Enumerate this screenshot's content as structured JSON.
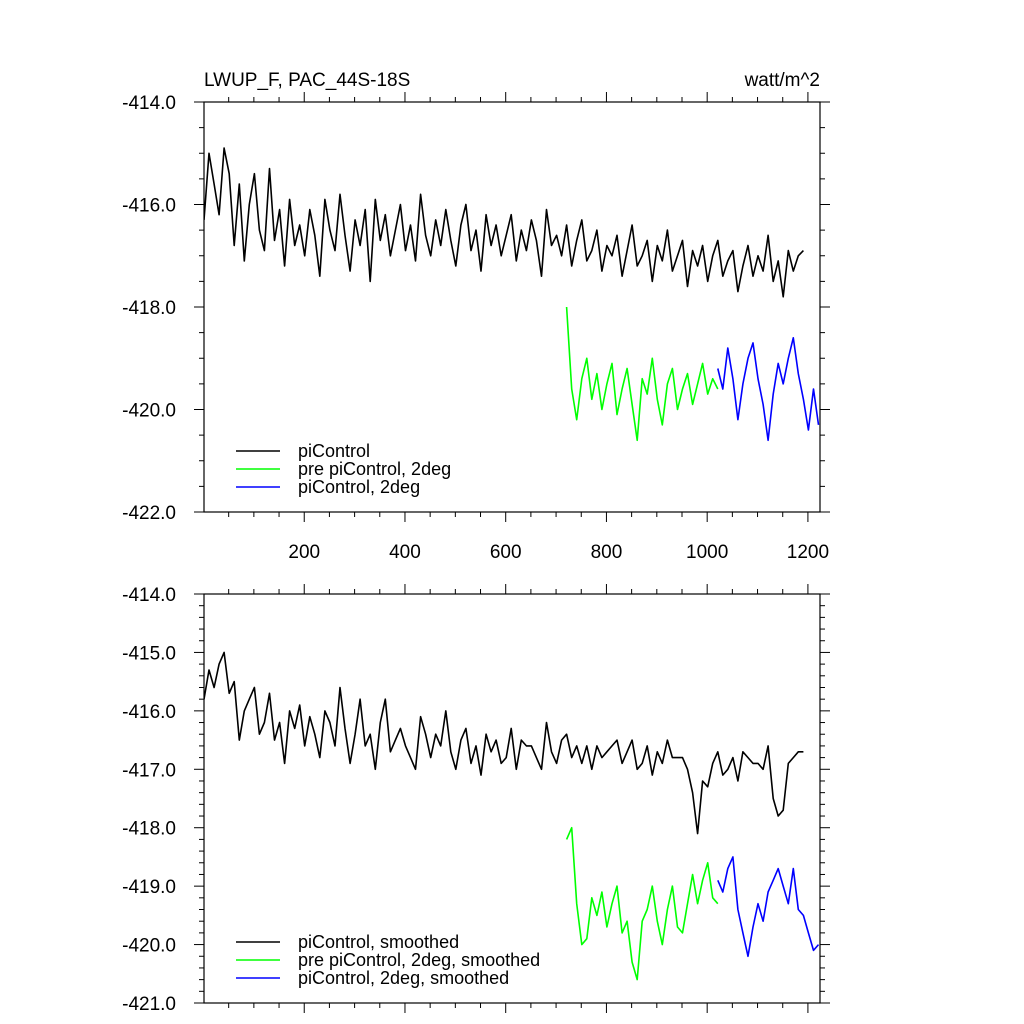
{
  "figure": {
    "title": "LWUP_F, PAC_44S-18S",
    "units": "watt/m^2"
  },
  "colors": {
    "piControl": "#000000",
    "pre_piControl_2deg": "#00ff00",
    "piControl_2deg": "#0000ff",
    "background": "#ffffff"
  },
  "chart_data": [
    {
      "type": "line",
      "title": "LWUP_F, PAC_44S-18S",
      "units_label": "watt/m^2",
      "xlabel": "",
      "ylabel": "",
      "xlim": [
        1,
        1224
      ],
      "ylim": [
        -422.0,
        -414.0
      ],
      "x_ticks": [
        200,
        400,
        600,
        800,
        1000,
        1200
      ],
      "x_tick_labels": [
        "200",
        "400",
        "600",
        "800",
        "1000",
        "1200"
      ],
      "y_ticks": [
        -414.0,
        -416.0,
        -418.0,
        -420.0,
        -422.0
      ],
      "y_tick_labels": [
        "-414.0",
        "-416.0",
        "-418.0",
        "-420.0",
        "-422.0"
      ],
      "grid": false,
      "legend_position": "bottom-left",
      "series": [
        {
          "name": "piControl",
          "color": "#000000",
          "x_start": 1,
          "x_step": 10,
          "values": [
            -416.3,
            -415.0,
            -415.6,
            -416.2,
            -414.9,
            -415.4,
            -416.8,
            -415.6,
            -417.1,
            -416.0,
            -415.4,
            -416.5,
            -416.9,
            -415.3,
            -416.7,
            -416.1,
            -417.2,
            -415.9,
            -416.8,
            -416.4,
            -417.0,
            -416.1,
            -416.6,
            -417.4,
            -415.9,
            -416.5,
            -416.9,
            -415.8,
            -416.6,
            -417.3,
            -416.3,
            -416.8,
            -416.1,
            -417.5,
            -415.9,
            -416.7,
            -416.2,
            -417.0,
            -416.5,
            -416.0,
            -416.9,
            -416.4,
            -417.1,
            -415.8,
            -416.6,
            -417.0,
            -416.3,
            -416.8,
            -416.1,
            -416.7,
            -417.2,
            -416.4,
            -416.0,
            -416.9,
            -416.5,
            -417.3,
            -416.2,
            -416.8,
            -416.4,
            -417.0,
            -416.6,
            -416.2,
            -417.1,
            -416.5,
            -416.9,
            -416.3,
            -416.7,
            -417.4,
            -416.1,
            -416.8,
            -416.6,
            -417.0,
            -416.4,
            -417.2,
            -416.7,
            -416.3,
            -417.1,
            -416.9,
            -416.5,
            -417.3,
            -416.8,
            -417.0,
            -416.6,
            -417.4,
            -416.9,
            -416.4,
            -417.2,
            -417.0,
            -416.7,
            -417.5,
            -416.8,
            -417.1,
            -416.5,
            -417.3,
            -417.0,
            -416.7,
            -417.6,
            -416.9,
            -417.2,
            -416.8,
            -417.5,
            -417.0,
            -416.7,
            -417.4,
            -417.1,
            -416.9,
            -417.7,
            -417.2,
            -416.8,
            -417.4,
            -417.0,
            -417.3,
            -416.6,
            -417.5,
            -417.1,
            -417.8,
            -416.9,
            -417.3,
            -417.0,
            -416.9
          ]
        },
        {
          "name": "pre piControl, 2deg",
          "color": "#00ff00",
          "x_start": 721,
          "x_step": 10,
          "values": [
            -418.0,
            -419.6,
            -420.2,
            -419.4,
            -419.0,
            -419.8,
            -419.3,
            -420.0,
            -419.5,
            -419.1,
            -420.1,
            -419.6,
            -419.2,
            -419.9,
            -420.6,
            -419.4,
            -419.7,
            -419.0,
            -419.8,
            -420.3,
            -419.5,
            -419.2,
            -420.0,
            -419.6,
            -419.3,
            -419.9,
            -419.5,
            -419.1,
            -419.7,
            -419.4,
            -419.6
          ]
        },
        {
          "name": "piControl, 2deg",
          "color": "#0000ff",
          "x_start": 1021,
          "x_step": 10,
          "values": [
            -419.2,
            -419.6,
            -418.8,
            -419.4,
            -420.2,
            -419.5,
            -419.0,
            -418.7,
            -419.4,
            -419.9,
            -420.6,
            -419.7,
            -419.1,
            -419.5,
            -419.0,
            -418.6,
            -419.3,
            -419.8,
            -420.4,
            -419.6,
            -420.3
          ]
        }
      ]
    },
    {
      "type": "line",
      "title": "",
      "xlabel": "",
      "ylabel": "",
      "xlim": [
        1,
        1224
      ],
      "ylim": [
        -421.0,
        -414.0
      ],
      "x_ticks": [
        200,
        400,
        600,
        800,
        1000,
        1200
      ],
      "x_tick_labels": [],
      "y_ticks": [
        -414.0,
        -415.0,
        -416.0,
        -417.0,
        -418.0,
        -419.0,
        -420.0,
        -421.0
      ],
      "y_tick_labels": [
        "-414.0",
        "-415.0",
        "-416.0",
        "-417.0",
        "-418.0",
        "-419.0",
        "-420.0",
        "-421.0"
      ],
      "grid": false,
      "legend_position": "bottom-left",
      "series": [
        {
          "name": "piControl, smoothed",
          "color": "#000000",
          "x_start": 1,
          "x_step": 10,
          "values": [
            -415.8,
            -415.3,
            -415.6,
            -415.2,
            -415.0,
            -415.7,
            -415.5,
            -416.5,
            -416.0,
            -415.8,
            -415.6,
            -416.4,
            -416.2,
            -415.7,
            -416.5,
            -416.2,
            -416.9,
            -416.0,
            -416.3,
            -415.9,
            -416.6,
            -416.1,
            -416.4,
            -416.8,
            -416.0,
            -416.2,
            -416.6,
            -415.6,
            -416.3,
            -416.9,
            -416.4,
            -415.8,
            -416.6,
            -416.4,
            -417.0,
            -416.2,
            -415.8,
            -416.7,
            -416.5,
            -416.3,
            -416.6,
            -416.8,
            -417.0,
            -416.1,
            -416.4,
            -416.8,
            -416.4,
            -416.6,
            -416.0,
            -416.7,
            -417.0,
            -416.5,
            -416.3,
            -416.9,
            -416.6,
            -417.1,
            -416.4,
            -416.7,
            -416.5,
            -416.9,
            -416.8,
            -416.3,
            -417.0,
            -416.5,
            -416.6,
            -416.6,
            -416.8,
            -417.0,
            -416.2,
            -416.7,
            -416.9,
            -416.5,
            -416.4,
            -416.8,
            -416.6,
            -416.9,
            -416.6,
            -417.0,
            -416.6,
            -416.8,
            -416.7,
            -416.6,
            -416.5,
            -416.9,
            -416.7,
            -416.5,
            -417.0,
            -416.9,
            -416.6,
            -417.1,
            -416.7,
            -416.9,
            -416.5,
            -416.8,
            -416.8,
            -416.8,
            -417.0,
            -417.4,
            -418.1,
            -417.2,
            -417.3,
            -416.9,
            -416.7,
            -417.1,
            -417.0,
            -416.8,
            -417.2,
            -416.7,
            -416.8,
            -416.9,
            -416.9,
            -417.0,
            -416.6,
            -417.5,
            -417.8,
            -417.7,
            -416.9,
            -416.8,
            -416.7,
            -416.7
          ]
        },
        {
          "name": "pre piControl, 2deg, smoothed",
          "color": "#00ff00",
          "x_start": 721,
          "x_step": 10,
          "values": [
            -418.2,
            -418.0,
            -419.3,
            -420.0,
            -419.9,
            -419.2,
            -419.5,
            -419.1,
            -419.7,
            -419.3,
            -419.0,
            -419.8,
            -419.6,
            -420.3,
            -420.6,
            -419.6,
            -419.4,
            -419.0,
            -419.6,
            -420.0,
            -419.4,
            -419.0,
            -419.7,
            -419.8,
            -419.3,
            -418.8,
            -419.3,
            -418.9,
            -418.6,
            -419.2,
            -419.3
          ]
        },
        {
          "name": "piControl, 2deg, smoothed",
          "color": "#0000ff",
          "x_start": 1021,
          "x_step": 10,
          "values": [
            -418.9,
            -419.1,
            -418.7,
            -418.5,
            -419.4,
            -419.8,
            -420.2,
            -419.7,
            -419.3,
            -419.6,
            -419.1,
            -418.9,
            -418.7,
            -419.0,
            -419.3,
            -418.7,
            -419.4,
            -419.5,
            -419.8,
            -420.1,
            -420.0
          ]
        }
      ]
    }
  ]
}
